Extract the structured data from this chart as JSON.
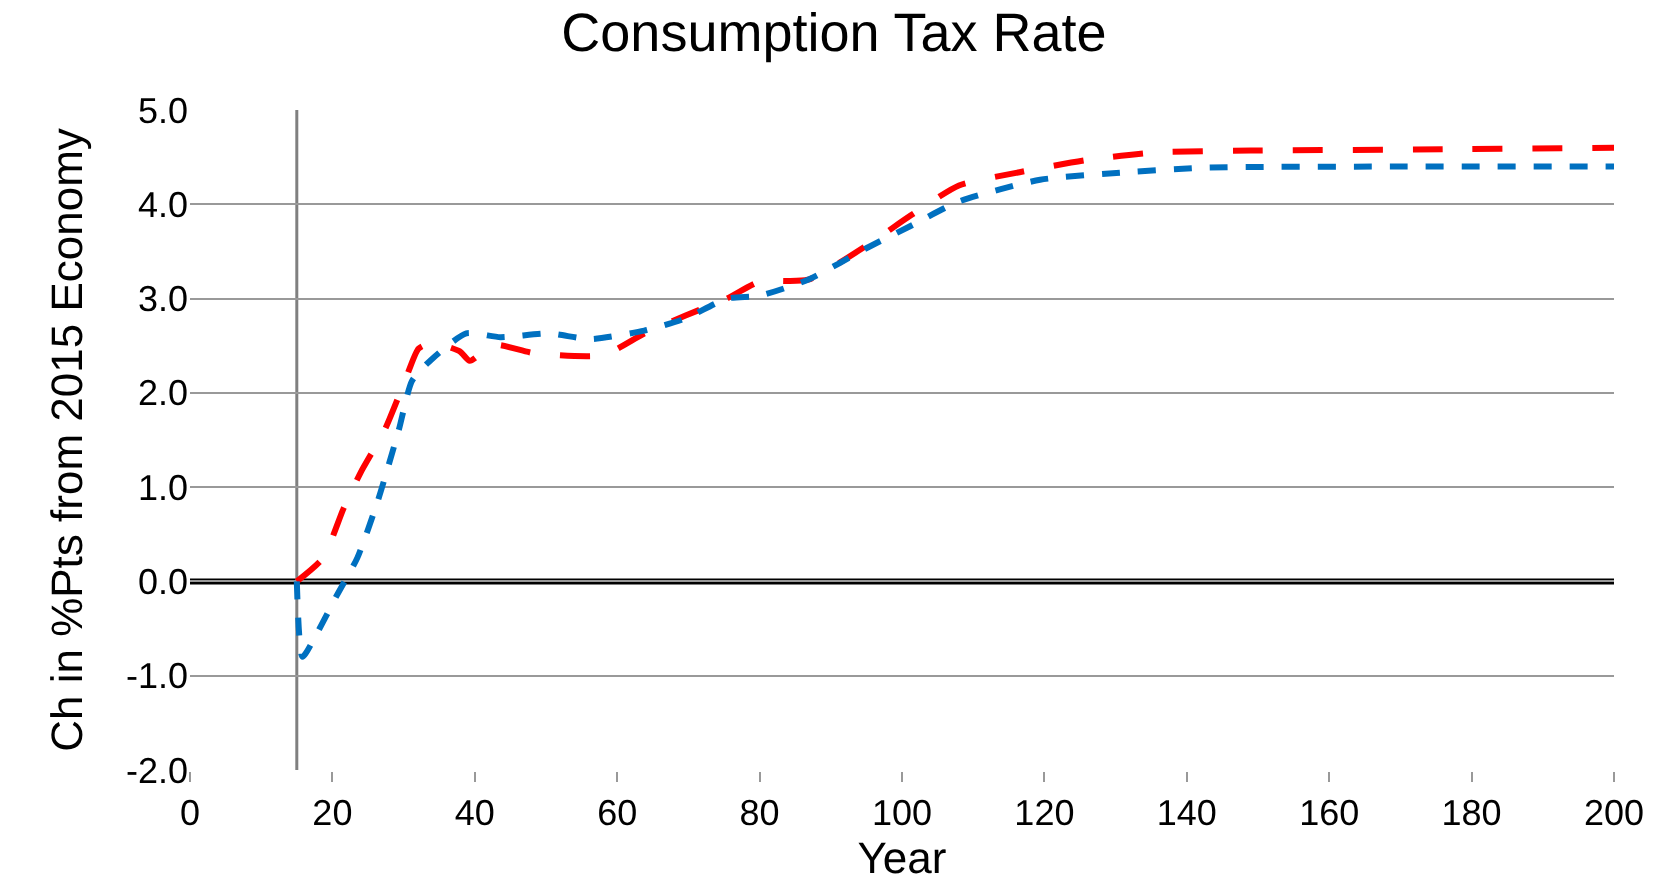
{
  "chart_data": {
    "type": "line",
    "title": "Consumption Tax Rate",
    "xlabel": "Year",
    "ylabel": "Ch in %Pts from 2015 Economy",
    "xlim": [
      0,
      200
    ],
    "xticks": [
      0,
      20,
      40,
      60,
      80,
      100,
      120,
      140,
      160,
      180,
      200
    ],
    "ylim": [
      -2,
      5
    ],
    "yticks": [
      {
        "value": -2,
        "label": "-2.0"
      },
      {
        "value": -1,
        "label": "-1.0"
      },
      {
        "value": 0,
        "label": "0.0"
      },
      {
        "value": 1,
        "label": "1.0"
      },
      {
        "value": 2,
        "label": "2.0"
      },
      {
        "value": 3,
        "label": "3.0"
      },
      {
        "value": 4,
        "label": "4.0"
      },
      {
        "value": 5,
        "label": "5.0"
      }
    ],
    "grid": "y",
    "line_style": "dashed",
    "ref_lines": [
      {
        "axis": "y",
        "value": 0,
        "color": "#000000"
      },
      {
        "axis": "x",
        "value": 15,
        "color": "#808080"
      }
    ],
    "series": [
      {
        "color": "#ff0000",
        "x": [
          15,
          18.7,
          21.6,
          24,
          27.3,
          30.2,
          32.1,
          34,
          37.9,
          39.3,
          42.6,
          48.4,
          58,
          63.8,
          69.6,
          75.4,
          80,
          86.8,
          95.4,
          101.2,
          108,
          116.5,
          126,
          135.7,
          149,
          172,
          200
        ],
        "values": [
          0,
          0.25,
          0.78,
          1.16,
          1.6,
          2.13,
          2.47,
          2.53,
          2.44,
          2.34,
          2.51,
          2.42,
          2.4,
          2.63,
          2.82,
          3.0,
          3.18,
          3.2,
          3.58,
          3.88,
          4.2,
          4.34,
          4.47,
          4.55,
          4.57,
          4.58,
          4.6
        ]
      },
      {
        "color": "#0070c0",
        "x": [
          15,
          15.8,
          17.7,
          20.6,
          23.5,
          26.4,
          29.3,
          31.2,
          34,
          38.8,
          43.6,
          50.4,
          56.2,
          63.8,
          69.6,
          75.4,
          80,
          86.8,
          95.4,
          101.2,
          108,
          119.4,
          131.7,
          143.2,
          170,
          200
        ],
        "values": [
          0,
          -0.8,
          -0.57,
          -0.15,
          0.25,
          0.86,
          1.6,
          2.13,
          2.36,
          2.63,
          2.59,
          2.63,
          2.57,
          2.66,
          2.79,
          3.0,
          3.03,
          3.2,
          3.55,
          3.77,
          4.03,
          4.26,
          4.34,
          4.39,
          4.4,
          4.4
        ]
      }
    ]
  }
}
